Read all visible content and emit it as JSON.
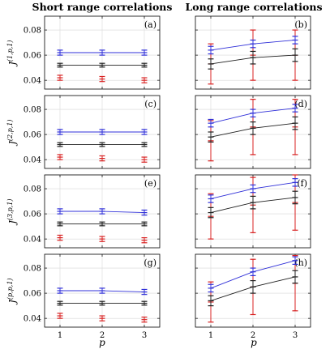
{
  "chart_data": {
    "type": "line",
    "column_titles": [
      "Short range correlations",
      "Long range correlations"
    ],
    "xlabel": "p",
    "x": [
      1,
      2,
      3
    ],
    "x_ticks": [
      "1",
      "2",
      "3"
    ],
    "ylim": [
      0.033,
      0.091
    ],
    "y_ticks": [
      "0.04",
      "0.06",
      "0.08"
    ],
    "colors": {
      "blue": "#2f2fd8",
      "black": "#202020",
      "red": "#d82020"
    },
    "panels": [
      {
        "label": "(a)",
        "ylabel": "J(1,p,1)",
        "y_base": "J",
        "y_sup": "(1,p,1)",
        "blue": {
          "values": [
            0.062,
            0.062,
            0.062
          ],
          "err": [
            0.002,
            0.002,
            0.002
          ]
        },
        "black": {
          "values": [
            0.052,
            0.052,
            0.052
          ],
          "err": [
            0.0015,
            0.0015,
            0.0015
          ]
        },
        "red": {
          "values": [
            0.042,
            0.041,
            0.04
          ],
          "err": [
            0.002,
            0.002,
            0.002
          ],
          "line": false
        }
      },
      {
        "label": "(b)",
        "ylabel": "",
        "y_base": "",
        "y_sup": "",
        "blue": {
          "values": [
            0.064,
            0.069,
            0.072
          ],
          "err": [
            0.003,
            0.003,
            0.003
          ]
        },
        "black": {
          "values": [
            0.053,
            0.058,
            0.06
          ],
          "err": [
            0.004,
            0.005,
            0.005
          ]
        },
        "red": {
          "values": [
            0.053,
            0.06,
            0.06
          ],
          "err": [
            0.016,
            0.02,
            0.02
          ],
          "line": false
        }
      },
      {
        "label": "(c)",
        "ylabel": "J(2,p,1)",
        "y_base": "J",
        "y_sup": "(2,p,1)",
        "blue": {
          "values": [
            0.062,
            0.062,
            0.062
          ],
          "err": [
            0.002,
            0.002,
            0.002
          ]
        },
        "black": {
          "values": [
            0.052,
            0.052,
            0.052
          ],
          "err": [
            0.0015,
            0.0015,
            0.0015
          ]
        },
        "red": {
          "values": [
            0.042,
            0.041,
            0.04
          ],
          "err": [
            0.002,
            0.002,
            0.002
          ],
          "line": false
        }
      },
      {
        "label": "(d)",
        "ylabel": "",
        "y_base": "",
        "y_sup": "",
        "blue": {
          "values": [
            0.069,
            0.077,
            0.081
          ],
          "err": [
            0.003,
            0.003,
            0.003
          ]
        },
        "black": {
          "values": [
            0.058,
            0.065,
            0.069
          ],
          "err": [
            0.004,
            0.005,
            0.005
          ]
        },
        "red": {
          "values": [
            0.055,
            0.066,
            0.066
          ],
          "err": [
            0.016,
            0.022,
            0.022
          ],
          "line": false
        }
      },
      {
        "label": "(e)",
        "ylabel": "J(3,p,1)",
        "y_base": "J",
        "y_sup": "(3,p,1)",
        "blue": {
          "values": [
            0.062,
            0.062,
            0.061
          ],
          "err": [
            0.002,
            0.002,
            0.002
          ]
        },
        "black": {
          "values": [
            0.052,
            0.052,
            0.052
          ],
          "err": [
            0.0015,
            0.0015,
            0.0015
          ]
        },
        "red": {
          "values": [
            0.041,
            0.04,
            0.039
          ],
          "err": [
            0.002,
            0.002,
            0.002
          ],
          "line": false
        }
      },
      {
        "label": "(f)",
        "ylabel": "",
        "y_base": "",
        "y_sup": "",
        "blue": {
          "values": [
            0.072,
            0.08,
            0.085
          ],
          "err": [
            0.003,
            0.003,
            0.003
          ]
        },
        "black": {
          "values": [
            0.061,
            0.069,
            0.073
          ],
          "err": [
            0.004,
            0.005,
            0.005
          ]
        },
        "red": {
          "values": [
            0.058,
            0.067,
            0.069
          ],
          "err": [
            0.018,
            0.022,
            0.022
          ],
          "line": false
        }
      },
      {
        "label": "(g)",
        "ylabel": "J(p,p,1)",
        "y_base": "J",
        "y_sup": "(p,p,1)",
        "blue": {
          "values": [
            0.062,
            0.062,
            0.061
          ],
          "err": [
            0.002,
            0.002,
            0.002
          ]
        },
        "black": {
          "values": [
            0.052,
            0.052,
            0.052
          ],
          "err": [
            0.0015,
            0.0015,
            0.0015
          ]
        },
        "red": {
          "values": [
            0.042,
            0.04,
            0.039
          ],
          "err": [
            0.002,
            0.002,
            0.002
          ],
          "line": false
        }
      },
      {
        "label": "(h)",
        "ylabel": "",
        "y_base": "",
        "y_sup": "",
        "blue": {
          "values": [
            0.064,
            0.077,
            0.086
          ],
          "err": [
            0.003,
            0.003,
            0.003
          ]
        },
        "black": {
          "values": [
            0.054,
            0.065,
            0.073
          ],
          "err": [
            0.004,
            0.005,
            0.005
          ]
        },
        "red": {
          "values": [
            0.053,
            0.065,
            0.068
          ],
          "err": [
            0.016,
            0.022,
            0.022
          ],
          "line": false
        }
      }
    ],
    "grid": true
  }
}
